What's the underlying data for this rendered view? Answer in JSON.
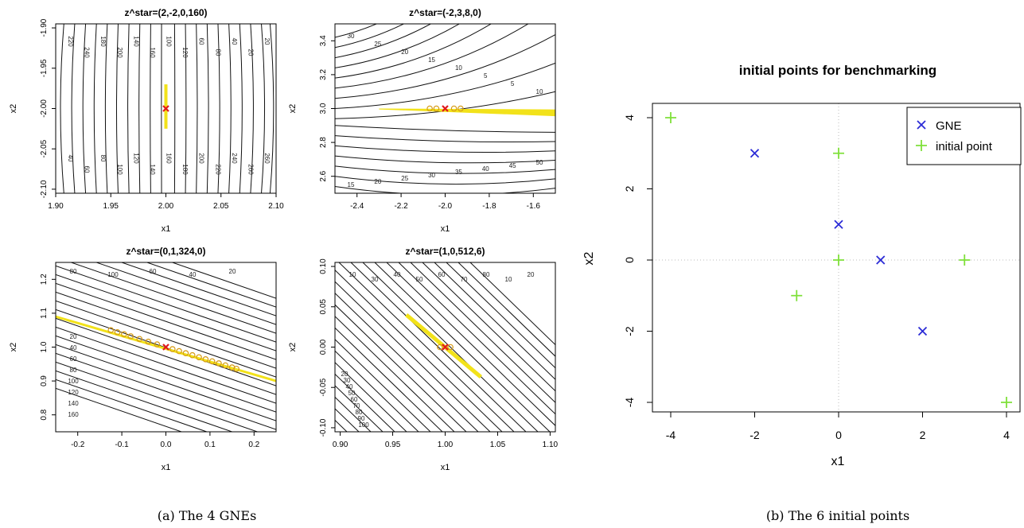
{
  "figure": {
    "caption_a": "(a) The 4 GNEs",
    "caption_b": "(b) The 6 initial points"
  },
  "chart_data": [
    {
      "type": "contour",
      "title": "z^star=(2,-2,0,160)",
      "xlabel": "x1",
      "ylabel": "x2",
      "xlim": [
        1.9,
        2.1
      ],
      "ylim": [
        -2.105,
        -1.895
      ],
      "xticks": [
        1.9,
        1.95,
        2.0,
        2.05,
        2.1
      ],
      "yticks": [
        -2.1,
        -2.05,
        -2.0,
        -1.95,
        -1.9
      ],
      "tick_fmt": 2,
      "contour_labels": [
        "220",
        "240",
        "180",
        "200",
        "140",
        "160",
        "100",
        "120",
        "60",
        "80",
        "40",
        "20",
        "20",
        "40",
        "60",
        "80",
        "100",
        "120",
        "140",
        "160",
        "180",
        "200",
        "220",
        "240",
        "260",
        "260"
      ],
      "gne": [
        2.0,
        -2.0
      ],
      "yellow_region": "thin vertical band at x1=2.00, x2 from -2.025 to -1.97",
      "iterates": []
    },
    {
      "type": "contour",
      "title": "z^star=(-2,3,8,0)",
      "xlabel": "x1",
      "ylabel": "x2",
      "xlim": [
        -2.5,
        -1.5
      ],
      "ylim": [
        2.5,
        3.5
      ],
      "xticks": [
        -2.4,
        -2.2,
        -2.0,
        -1.8,
        -1.6
      ],
      "yticks": [
        2.6,
        2.8,
        3.0,
        3.2,
        3.4
      ],
      "tick_fmt": 1,
      "contour_labels": [
        "30",
        "25",
        "20",
        "15",
        "10",
        "5",
        "5",
        "10",
        "15",
        "20",
        "25",
        "30",
        "35",
        "40",
        "45",
        "50"
      ],
      "gne": [
        -2.0,
        3.0
      ],
      "yellow_region": "thin band along x2=3.0 across the plot",
      "iterates": [
        [
          -2.07,
          3.0
        ],
        [
          -2.04,
          3.0
        ],
        [
          -1.96,
          3.0
        ],
        [
          -1.93,
          3.0
        ]
      ]
    },
    {
      "type": "contour",
      "title": "z^star=(0,1,324,0)",
      "xlabel": "x1",
      "ylabel": "x2",
      "xlim": [
        -0.25,
        0.25
      ],
      "ylim": [
        0.75,
        1.25
      ],
      "xticks": [
        -0.2,
        -0.1,
        0.0,
        0.1,
        0.2
      ],
      "yticks": [
        0.8,
        0.9,
        1.0,
        1.1,
        1.2
      ],
      "tick_fmt": 1,
      "contour_labels": [
        "80",
        "100",
        "60",
        "40",
        "20",
        "20",
        "40",
        "60",
        "80",
        "100",
        "120",
        "140",
        "160"
      ],
      "gne": [
        0.0,
        1.0
      ],
      "yellow_region": "line through (0,1) with slope about -0.4",
      "iterates": [
        [
          -0.125,
          1.05
        ],
        [
          -0.11,
          1.044
        ],
        [
          -0.095,
          1.038
        ],
        [
          -0.08,
          1.032
        ],
        [
          -0.06,
          1.024
        ],
        [
          -0.04,
          1.016
        ],
        [
          -0.02,
          1.008
        ],
        [
          0.015,
          0.994
        ],
        [
          0.03,
          0.988
        ],
        [
          0.045,
          0.982
        ],
        [
          0.06,
          0.976
        ],
        [
          0.075,
          0.97
        ],
        [
          0.09,
          0.964
        ],
        [
          0.105,
          0.958
        ],
        [
          0.12,
          0.952
        ],
        [
          0.135,
          0.946
        ],
        [
          0.15,
          0.94
        ],
        [
          0.16,
          0.936
        ]
      ]
    },
    {
      "type": "contour",
      "title": "z^star=(1,0,512,6)",
      "xlabel": "x1",
      "ylabel": "x2",
      "xlim": [
        0.895,
        1.105
      ],
      "ylim": [
        -0.105,
        0.105
      ],
      "xticks": [
        0.9,
        0.95,
        1.0,
        1.05,
        1.1
      ],
      "yticks": [
        -0.1,
        -0.05,
        0.0,
        0.05,
        0.1
      ],
      "tick_fmt": 2,
      "contour_labels": [
        "10",
        "30",
        "40",
        "50",
        "60",
        "70",
        "80",
        "10",
        "20",
        "20",
        "30",
        "40",
        "50",
        "60",
        "70",
        "80",
        "90",
        "100"
      ],
      "gne": [
        1.0,
        0.0
      ],
      "yellow_region": "diagonal band through (1,0), slope -1.1, from x1=0.96 to 1.035",
      "iterates": [
        [
          0.995,
          0.0
        ],
        [
          1.005,
          0.0
        ]
      ]
    },
    {
      "type": "scatter",
      "title": "initial points for benchmarking",
      "xlabel": "x1",
      "ylabel": "x2",
      "xlim": [
        -4.2,
        4.2
      ],
      "ylim": [
        -4.2,
        4.2
      ],
      "xticks": [
        -4,
        -2,
        0,
        2,
        4
      ],
      "yticks": [
        -4,
        -2,
        0,
        2,
        4
      ],
      "grid": "dotted lines at x1=0 and x2=0",
      "legend_position": "top-right",
      "series": [
        {
          "name": "GNE",
          "marker": "x",
          "color": "#2b2bd6",
          "points": [
            [
              -2,
              3
            ],
            [
              0,
              1
            ],
            [
              1,
              0
            ],
            [
              2,
              -2
            ]
          ]
        },
        {
          "name": "initial point",
          "marker": "+",
          "color": "#7fe03a",
          "points": [
            [
              -4,
              4
            ],
            [
              0,
              3
            ],
            [
              0,
              0
            ],
            [
              3,
              0
            ],
            [
              -1,
              -1
            ],
            [
              4,
              -4
            ]
          ]
        }
      ]
    }
  ]
}
